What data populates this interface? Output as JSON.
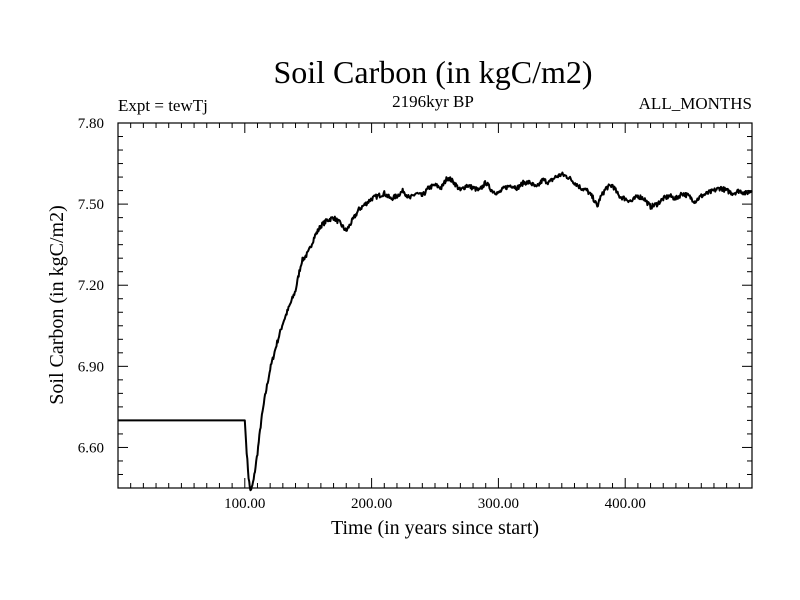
{
  "chart_data": {
    "type": "line",
    "title": "Soil Carbon (in kgC/m2)",
    "subtitle_left": "Expt = tewTj",
    "subtitle_center": "2196kyr BP",
    "subtitle_right": "ALL_MONTHS",
    "xlabel": "Time (in years since start)",
    "ylabel": "Soil Carbon (in kgC/m2)",
    "xlim": [
      0,
      500
    ],
    "ylim": [
      6.45,
      7.8
    ],
    "x_ticks": [
      100,
      200,
      300,
      400
    ],
    "x_tick_labels": [
      "100.00",
      "200.00",
      "300.00",
      "400.00"
    ],
    "y_ticks": [
      6.6,
      6.9,
      7.2,
      7.5,
      7.8
    ],
    "y_tick_labels": [
      "6.60",
      "6.90",
      "7.20",
      "7.50",
      "7.80"
    ],
    "grid": false,
    "series": [
      {
        "name": "Soil Carbon",
        "color": "#000000",
        "x": [
          0,
          50,
          100,
          101,
          102,
          103,
          104,
          105,
          107,
          110,
          113,
          116,
          120,
          125,
          130,
          135,
          140,
          143,
          145,
          150,
          155,
          160,
          165,
          170,
          175,
          180,
          185,
          190,
          195,
          200,
          205,
          210,
          215,
          220,
          225,
          230,
          235,
          240,
          245,
          250,
          255,
          260,
          265,
          270,
          275,
          280,
          285,
          290,
          295,
          300,
          305,
          310,
          315,
          320,
          325,
          330,
          335,
          340,
          345,
          350,
          355,
          360,
          365,
          370,
          375,
          378,
          380,
          385,
          390,
          395,
          400,
          405,
          410,
          415,
          420,
          425,
          430,
          435,
          440,
          445,
          450,
          455,
          460,
          465,
          470,
          475,
          480,
          485,
          490,
          495,
          500
        ],
        "y": [
          6.7,
          6.7,
          6.7,
          6.62,
          6.55,
          6.49,
          6.45,
          6.44,
          6.48,
          6.58,
          6.7,
          6.79,
          6.89,
          6.98,
          7.06,
          7.12,
          7.18,
          7.25,
          7.29,
          7.32,
          7.38,
          7.42,
          7.44,
          7.45,
          7.43,
          7.4,
          7.44,
          7.48,
          7.5,
          7.52,
          7.53,
          7.54,
          7.52,
          7.53,
          7.55,
          7.52,
          7.54,
          7.53,
          7.56,
          7.57,
          7.56,
          7.6,
          7.58,
          7.55,
          7.57,
          7.56,
          7.55,
          7.58,
          7.55,
          7.54,
          7.56,
          7.57,
          7.56,
          7.58,
          7.58,
          7.56,
          7.59,
          7.58,
          7.6,
          7.61,
          7.6,
          7.58,
          7.56,
          7.55,
          7.52,
          7.49,
          7.52,
          7.56,
          7.57,
          7.53,
          7.52,
          7.51,
          7.53,
          7.52,
          7.49,
          7.5,
          7.52,
          7.53,
          7.52,
          7.54,
          7.53,
          7.51,
          7.53,
          7.54,
          7.55,
          7.56,
          7.55,
          7.54,
          7.55,
          7.54,
          7.55
        ]
      }
    ]
  }
}
